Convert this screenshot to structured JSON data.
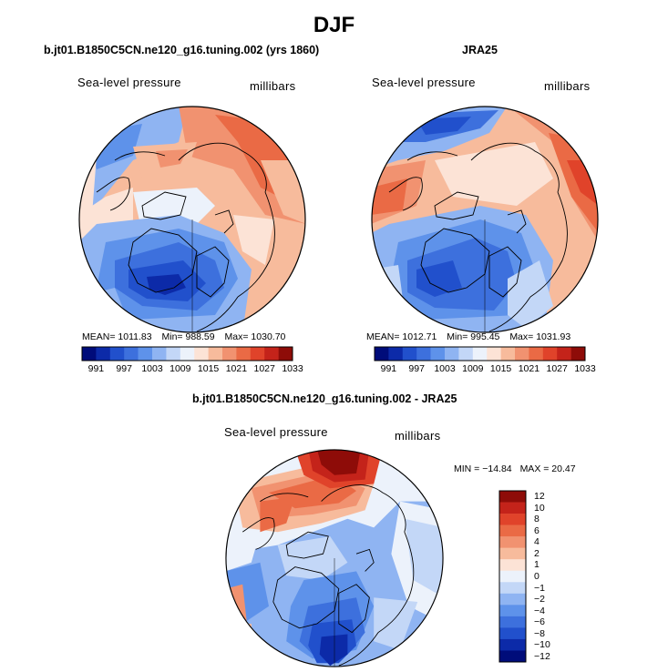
{
  "figure": {
    "title": "DJF"
  },
  "panels": [
    {
      "title": "b.jt01.B1850C5CN.ne120_g16.tuning.002 (yrs 1860)",
      "variable": "Sea-level pressure",
      "units": "millibars",
      "stats": {
        "mean_label": "MEAN=",
        "mean": "1011.83",
        "min_label": "Min=",
        "min": "988.59",
        "max_label": "Max=",
        "max": "1030.70"
      }
    },
    {
      "title": "JRA25",
      "variable": "Sea-level pressure",
      "units": "millibars",
      "stats": {
        "mean_label": "MEAN=",
        "mean": "1012.71",
        "min_label": "Min=",
        "min": "995.45",
        "max_label": "Max=",
        "max": "1031.93"
      }
    },
    {
      "title": "b.jt01.B1850C5CN.ne120_g16.tuning.002 - JRA25",
      "variable": "Sea-level pressure",
      "units": "millibars",
      "stats": {
        "min_label": "MIN =",
        "min": "−14.84",
        "max_label": "MAX =",
        "max": "20.47"
      }
    }
  ],
  "colorbar_abs": {
    "colors": [
      "#000c7a",
      "#0c2aa8",
      "#2150cc",
      "#3d70dd",
      "#5e92ea",
      "#8fb4f2",
      "#c3d7f7",
      "#ecf2fb",
      "#fce3d6",
      "#f7bb9c",
      "#f19270",
      "#ea6a45",
      "#e0432a",
      "#c4231a",
      "#8e0c08"
    ],
    "ticks": [
      "991",
      "997",
      "1003",
      "1009",
      "1015",
      "1021",
      "1027",
      "1033"
    ]
  },
  "colorbar_diff": {
    "colors": [
      "#000c7a",
      "#0c2aa8",
      "#2150cc",
      "#3d70dd",
      "#5e92ea",
      "#8fb4f2",
      "#c3d7f7",
      "#ecf2fb",
      "#fce3d6",
      "#f7bb9c",
      "#f19270",
      "#ea6a45",
      "#e0432a",
      "#c4231a",
      "#8e0c08"
    ],
    "ticks": [
      "12",
      "10",
      "8",
      "6",
      "4",
      "2",
      "1",
      "0",
      "−1",
      "−2",
      "−4",
      "−6",
      "−8",
      "−10",
      "−12"
    ]
  },
  "colors": {
    "low_deep": "#000c7a",
    "low": "#3d70dd",
    "neutral": "#f7f7f7",
    "high": "#ea6a45",
    "high_deep": "#8e0c08",
    "coastline": "#000000"
  }
}
